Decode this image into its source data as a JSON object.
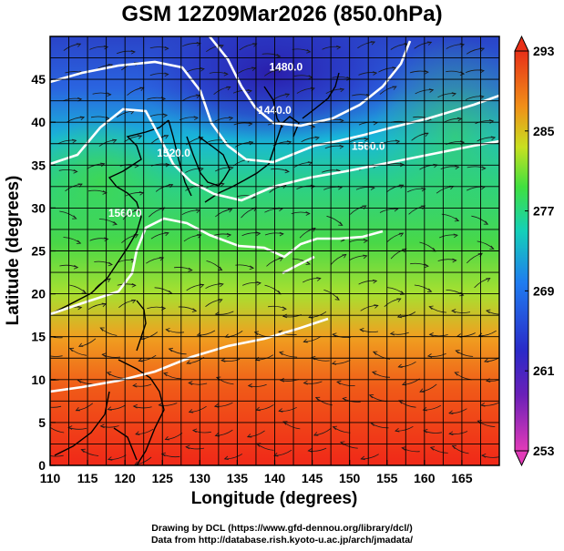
{
  "title": "GSM 12Z09Mar2026 (850.0hPa)",
  "credits": {
    "line1": "Drawing by DCL (https://www.gfd-dennou.org/library/dcl/)",
    "line2": "Data from http://database.rish.kyoto-u.ac.jp/arch/jmadata/"
  },
  "chart_data": {
    "type": "heatmap",
    "xlabel": "Longitude (degrees)",
    "ylabel": "Latitude (degrees)",
    "xlim": [
      110,
      170
    ],
    "ylim": [
      0,
      50
    ],
    "x_ticks": [
      110,
      115,
      120,
      125,
      130,
      135,
      140,
      145,
      150,
      155,
      160,
      165
    ],
    "y_ticks": [
      0,
      5,
      10,
      15,
      20,
      25,
      30,
      35,
      40,
      45
    ],
    "grid": true,
    "colorbar": {
      "placement": "right",
      "min": 253,
      "max": 293,
      "ticks": [
        253,
        261,
        269,
        277,
        285,
        293
      ],
      "colors": [
        "#e23bb8",
        "#3a1fb0",
        "#1f5cf0",
        "#14c8d8",
        "#38e048",
        "#c8e020",
        "#f09018",
        "#e83018"
      ]
    },
    "contours": [
      {
        "label": "1480.0",
        "lon": 141.5,
        "lat": 46.0
      },
      {
        "label": "1440.0",
        "lon": 140.0,
        "lat": 41.0
      },
      {
        "label": "1520.0",
        "lon": 126.5,
        "lat": 36.0
      },
      {
        "label": "1560.0",
        "lon": 120.0,
        "lat": 29.0
      },
      {
        "label": "1560.0",
        "lon": 152.5,
        "lat": 36.8
      }
    ],
    "overlays": [
      "temperature shading",
      "geopotential height contours (white)",
      "wind streamlines",
      "coastlines",
      "lat/lon grid"
    ]
  }
}
